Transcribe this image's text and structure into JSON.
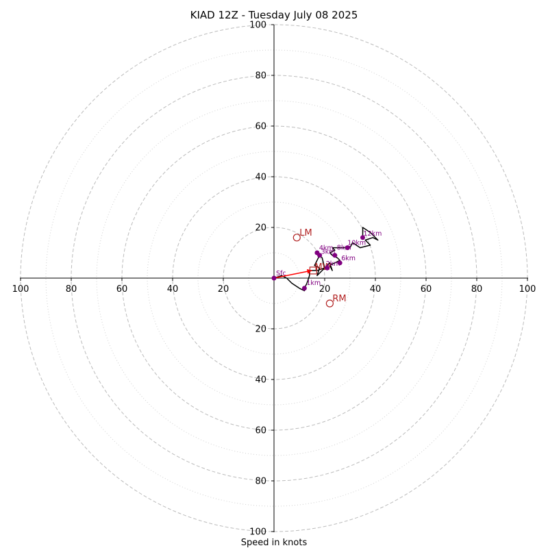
{
  "chart_data": {
    "type": "hodograph",
    "title": "KIAD 12Z - Tuesday July 08 2025",
    "xlabel": "Speed in knots",
    "max_speed": 100,
    "tick_labels": [
      "100",
      "80",
      "60",
      "40",
      "20",
      "20",
      "40",
      "60",
      "80",
      "100"
    ],
    "y_tick_labels": [
      "100",
      "80",
      "60",
      "40",
      "20",
      "20",
      "40",
      "60",
      "80",
      "100"
    ],
    "rings_major": [
      20,
      40,
      60,
      80,
      100
    ],
    "rings_minor": [
      10,
      30,
      50,
      70,
      90
    ],
    "hodograph_trace": [
      [
        0,
        0
      ],
      [
        3,
        1
      ],
      [
        5,
        0
      ],
      [
        7,
        -2
      ],
      [
        10,
        -4
      ],
      [
        12,
        -5
      ],
      [
        12,
        -4
      ],
      [
        13,
        -2
      ],
      [
        14,
        1
      ],
      [
        14,
        3
      ],
      [
        17,
        3
      ],
      [
        20,
        4
      ],
      [
        18,
        2
      ],
      [
        17,
        1
      ],
      [
        18,
        4
      ],
      [
        16,
        5
      ],
      [
        17,
        7
      ],
      [
        18,
        9
      ],
      [
        19,
        8
      ],
      [
        20,
        4
      ],
      [
        21,
        5
      ],
      [
        22,
        6
      ],
      [
        23,
        3
      ],
      [
        22,
        5
      ],
      [
        24,
        6
      ],
      [
        26,
        7
      ],
      [
        25,
        8
      ],
      [
        23,
        9
      ],
      [
        22,
        10
      ],
      [
        24,
        11
      ],
      [
        23,
        12
      ],
      [
        27,
        12
      ],
      [
        30,
        12
      ],
      [
        31,
        14
      ],
      [
        34,
        12
      ],
      [
        38,
        13
      ],
      [
        36,
        15
      ],
      [
        39,
        16
      ],
      [
        41,
        15
      ],
      [
        38,
        18
      ],
      [
        35,
        20
      ],
      [
        35,
        18
      ],
      [
        35,
        16
      ]
    ],
    "height_markers": [
      {
        "label": "Sfc",
        "u": 0,
        "v": 0
      },
      {
        "label": "1km",
        "u": 12,
        "v": -4
      },
      {
        "label": "2km",
        "u": 21,
        "v": 4
      },
      {
        "label": "3km",
        "u": 18,
        "v": 9
      },
      {
        "label": "4km",
        "u": 17,
        "v": 10
      },
      {
        "label": "6km",
        "u": 26,
        "v": 6
      },
      {
        "label": "8km",
        "u": 24,
        "v": 9
      },
      {
        "label": "10km",
        "u": 29,
        "v": 12
      },
      {
        "label": "12km",
        "u": 35,
        "v": 16
      }
    ],
    "storm_motions": {
      "LM": {
        "label": "LM",
        "u": 9,
        "v": 16
      },
      "RM": {
        "label": "RM",
        "u": 22,
        "v": -10
      },
      "MW": {
        "label": "MW",
        "u": 15.5,
        "v": 3
      }
    },
    "shear_vector": {
      "from": [
        0,
        0
      ],
      "to": [
        15,
        3
      ]
    },
    "colors": {
      "trace": "#000000",
      "markers": "#800080",
      "storm_motion": "#b22222",
      "shear_vector": "#ff0000",
      "ring": "#bbbbbb"
    }
  }
}
